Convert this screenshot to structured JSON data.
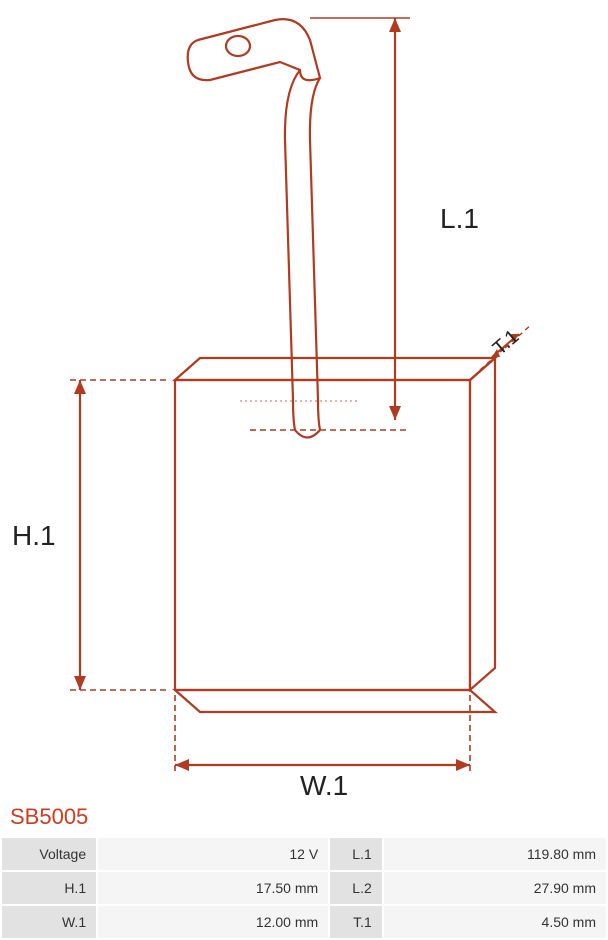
{
  "product_code": "SB5005",
  "product_code_color": "#d13a1d",
  "diagram": {
    "stroke_color": "#b23a1e",
    "stroke_width": 2.2,
    "text_color": "#222222",
    "label_fontsize": 28,
    "labels": {
      "L1": "L.1",
      "H1": "H.1",
      "W1": "W.1",
      "T1": "T.1"
    }
  },
  "table": {
    "label_bg": "#e2e2e2",
    "value_bg": "#f5f5f5",
    "text_color": "#333333",
    "rows": [
      {
        "label1": "Voltage",
        "value1": "12 V",
        "label2": "L.1",
        "value2": "119.80 mm"
      },
      {
        "label1": "H.1",
        "value1": "17.50 mm",
        "label2": "L.2",
        "value2": "27.90 mm"
      },
      {
        "label1": "W.1",
        "value1": "12.00 mm",
        "label2": "T.1",
        "value2": "4.50 mm"
      }
    ]
  }
}
